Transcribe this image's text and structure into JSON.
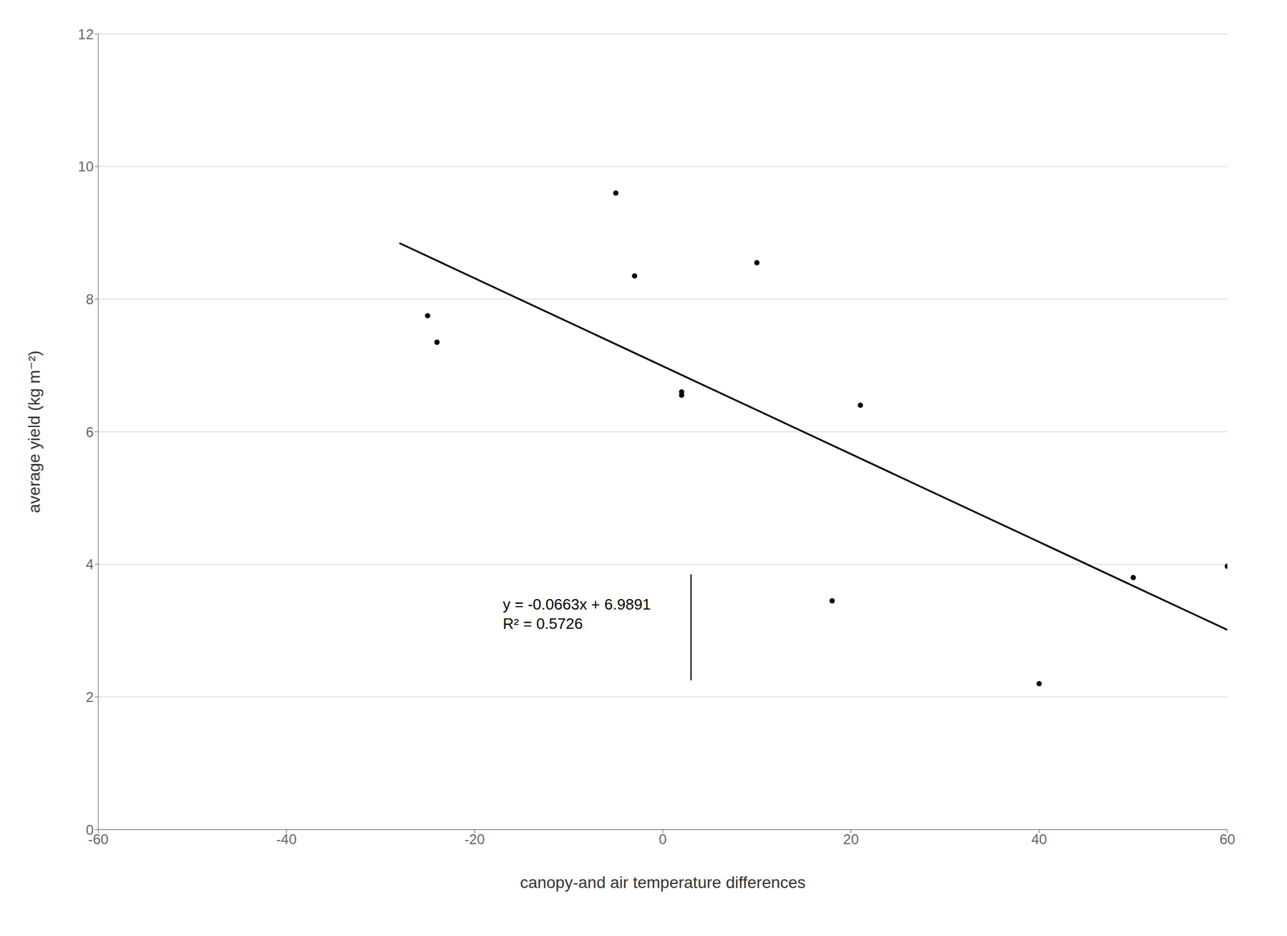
{
  "chart_data": {
    "type": "scatter",
    "xlabel": "canopy-and air temperature differences",
    "ylabel": "average yield (kg m⁻²)",
    "series": [
      {
        "type": "scatter",
        "color": "#000000",
        "marker": "circle",
        "x": [
          -25,
          -24,
          -5,
          -3,
          2,
          2,
          10,
          18,
          21,
          40,
          50,
          60
        ],
        "values": [
          7.75,
          7.35,
          9.6,
          8.35,
          6.6,
          6.55,
          8.55,
          3.45,
          6.4,
          2.2,
          3.8,
          3.97
        ]
      },
      {
        "type": "line",
        "color": "#000000",
        "x": [
          -28,
          60
        ],
        "values": [
          8.8455,
          3.0111
        ]
      }
    ],
    "error_bars": [
      {
        "x": 3,
        "low": 2.25,
        "high": 3.85,
        "color": "#000000"
      }
    ],
    "annotations": [
      {
        "x": -17,
        "y": 3.55,
        "text": [
          "y = -0.0663x + 6.9891",
          "R² = 0.5726"
        ]
      }
    ],
    "xlim": [
      -60,
      60
    ],
    "ylim": [
      0,
      12
    ],
    "xticks": [
      -60,
      -40,
      -20,
      0,
      20,
      40,
      60
    ],
    "yticks": [
      0,
      2,
      4,
      6,
      8,
      10,
      12
    ],
    "grid": "y"
  }
}
